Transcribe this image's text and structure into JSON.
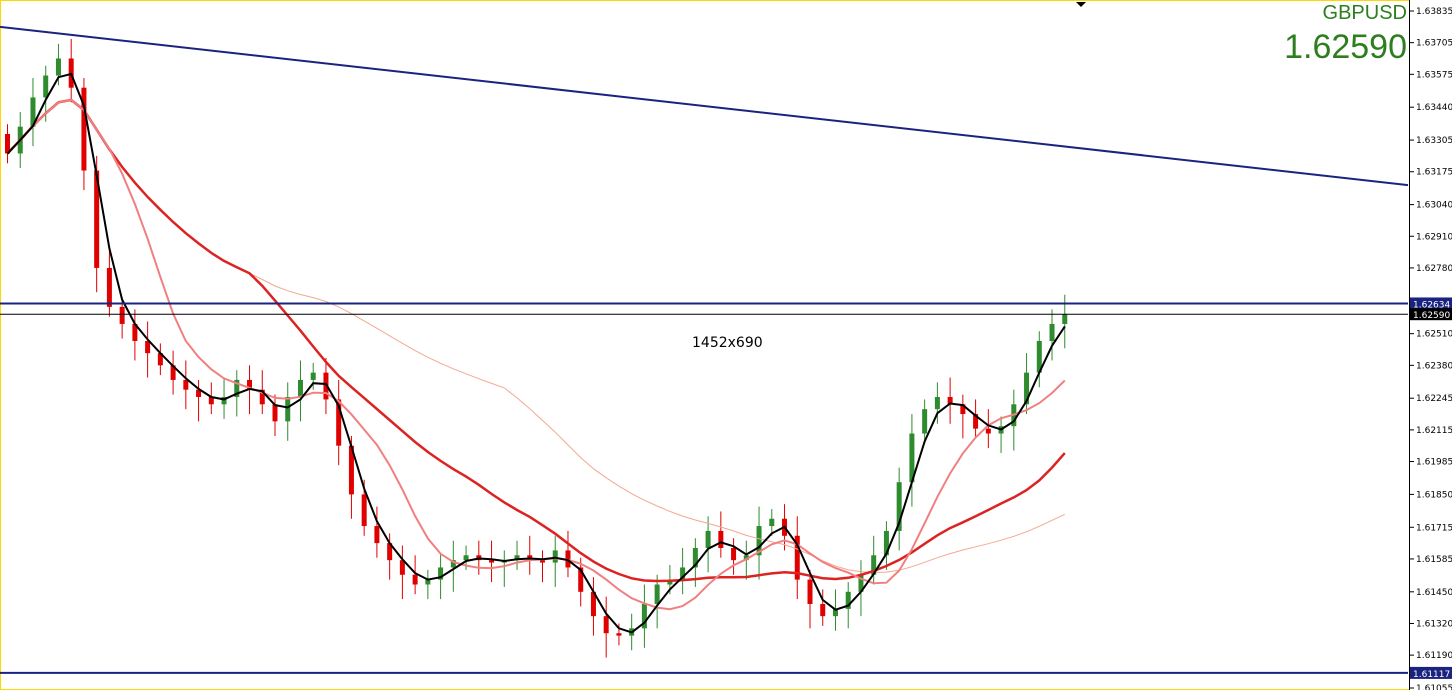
{
  "symbol": "GBPUSD",
  "current_price": "1.62590",
  "size_label": "1452x690",
  "colors": {
    "bull": "#2e8b2e",
    "bear": "#e00000",
    "trendline": "#1a237e",
    "ma_fast": "#000000",
    "ma_mid": "#f08080",
    "ma_slow": "#dd2222",
    "ma_long": "#f4a890",
    "bid_line": "#000000",
    "tag_bg": "#1a237e"
  },
  "chart_data": {
    "type": "candlestick",
    "symbol": "GBPUSD",
    "ylim": [
      1.61055,
      1.63835
    ],
    "y_ticks": [
      "1.63835",
      "1.63705",
      "1.63575",
      "1.63440",
      "1.63305",
      "1.63175",
      "1.63040",
      "1.62910",
      "1.62780",
      "1.62510",
      "1.62380",
      "1.62245",
      "1.62115",
      "1.61985",
      "1.61850",
      "1.61715",
      "1.61585",
      "1.61450",
      "1.61320",
      "1.61190",
      "1.61055"
    ],
    "price_tags": [
      {
        "label": "1.62634",
        "value": 1.62634
      },
      {
        "label": "1.62590",
        "value": 1.6259
      },
      {
        "label": "1.61117",
        "value": 1.61117
      }
    ],
    "horizontal_lines": [
      {
        "name": "resistance",
        "value": 1.62634
      },
      {
        "name": "bid",
        "value": 1.6259
      },
      {
        "name": "support",
        "value": 1.61117
      }
    ],
    "trendline": {
      "from_bar": 0,
      "from_value": 1.6377,
      "to_bar": 1410,
      "to_value": 1.6312
    },
    "close_series": [
      1.6325,
      1.6336,
      1.6348,
      1.6357,
      1.6364,
      1.6352,
      1.6318,
      1.6278,
      1.6262,
      1.6255,
      1.6248,
      1.6243,
      1.6238,
      1.6232,
      1.6228,
      1.6225,
      1.6222,
      1.6225,
      1.6232,
      1.6228,
      1.6222,
      1.6215,
      1.6225,
      1.6232,
      1.6235,
      1.6224,
      1.6205,
      1.6185,
      1.6172,
      1.6165,
      1.6158,
      1.6152,
      1.6148,
      1.615,
      1.6155,
      1.6158,
      1.616,
      1.6158,
      1.6157,
      1.6158,
      1.616,
      1.6158,
      1.6157,
      1.6162,
      1.6155,
      1.6145,
      1.6135,
      1.6128,
      1.6127,
      1.613,
      1.614,
      1.6148,
      1.615,
      1.6155,
      1.6163,
      1.617,
      1.6163,
      1.6158,
      1.616,
      1.6172,
      1.6175,
      1.6168,
      1.615,
      1.614,
      1.6135,
      1.6138,
      1.6145,
      1.6152,
      1.616,
      1.617,
      1.619,
      1.621,
      1.622,
      1.6225,
      1.6222,
      1.6218,
      1.6212,
      1.621,
      1.6213,
      1.6222,
      1.6235,
      1.6248,
      1.6255,
      1.6259
    ]
  }
}
